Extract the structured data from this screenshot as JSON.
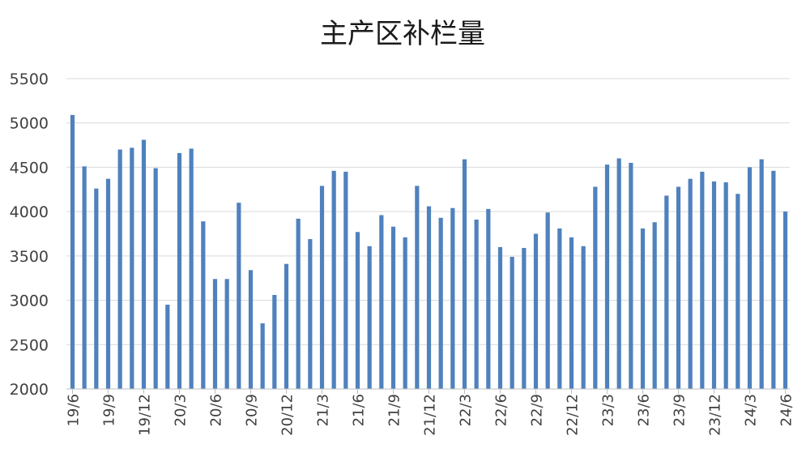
{
  "chart_data": {
    "type": "bar",
    "title": "主产区补栏量",
    "xlabel": "",
    "ylabel": "",
    "ylim": [
      2000,
      5500
    ],
    "yticks": [
      2000,
      2500,
      3000,
      3500,
      4000,
      4500,
      5000,
      5500
    ],
    "grid": true,
    "bar_color": "#4F81BD",
    "x_tick_labels": [
      "19/6",
      "19/9",
      "19/12",
      "20/3",
      "20/6",
      "20/9",
      "20/12",
      "21/3",
      "21/6",
      "21/9",
      "21/12",
      "22/3",
      "22/6",
      "22/9",
      "22/12",
      "23/3",
      "23/6",
      "23/9",
      "23/12",
      "24/3",
      "24/6"
    ],
    "categories": [
      "19/6",
      "19/7",
      "19/8",
      "19/9",
      "19/10",
      "19/11",
      "19/12",
      "20/1",
      "20/2",
      "20/3",
      "20/4",
      "20/5",
      "20/6",
      "20/7",
      "20/8",
      "20/9",
      "20/10",
      "20/11",
      "20/12",
      "21/1",
      "21/2",
      "21/3",
      "21/4",
      "21/5",
      "21/6",
      "21/7",
      "21/8",
      "21/9",
      "21/10",
      "21/11",
      "21/12",
      "22/1",
      "22/2",
      "22/3",
      "22/4",
      "22/5",
      "22/6",
      "22/7",
      "22/8",
      "22/9",
      "22/10",
      "22/11",
      "22/12",
      "23/1",
      "23/2",
      "23/3",
      "23/4",
      "23/5",
      "23/6",
      "23/7",
      "23/8",
      "23/9",
      "23/10",
      "23/11",
      "23/12",
      "24/1",
      "24/2",
      "24/3",
      "24/4",
      "24/5",
      "24/6"
    ],
    "values": [
      5090,
      4510,
      4260,
      4370,
      4700,
      4720,
      4810,
      4490,
      2950,
      4660,
      4710,
      3890,
      3240,
      3240,
      4100,
      3340,
      2740,
      3060,
      3410,
      3920,
      3690,
      4290,
      4460,
      4450,
      3770,
      3610,
      3960,
      3830,
      3710,
      4290,
      4060,
      3930,
      4040,
      4590,
      3910,
      4030,
      3600,
      3490,
      3590,
      3750,
      3990,
      3810,
      3710,
      3610,
      4280,
      4530,
      4600,
      4550,
      3810,
      3880,
      4180,
      4280,
      4370,
      4450,
      4340,
      4330,
      4200,
      4500,
      4590,
      4460,
      4000
    ]
  }
}
